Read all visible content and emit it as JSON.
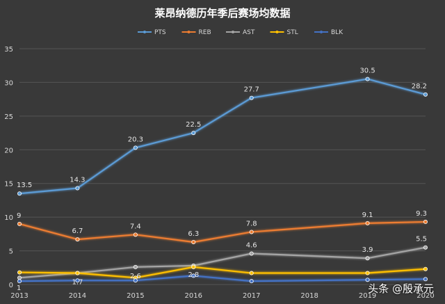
{
  "chart_data": {
    "type": "line",
    "title": "莱昂纳德历年季后赛场均数据",
    "categories": [
      "2013",
      "2014",
      "2015",
      "2016",
      "2017",
      "2018",
      "2019",
      "2020"
    ],
    "ylim": [
      0,
      35
    ],
    "yticks": [
      0,
      5,
      10,
      15,
      20,
      25,
      30,
      35
    ],
    "grid": true,
    "legend_position": "top",
    "series": [
      {
        "name": "PTS",
        "color": "#5b9bd5",
        "values": [
          13.5,
          14.3,
          20.3,
          22.5,
          27.7,
          null,
          30.5,
          28.2
        ],
        "labels": [
          "13.5",
          "14.3",
          "20.3",
          "22.5",
          "27.7",
          null,
          "30.5",
          "28.2"
        ]
      },
      {
        "name": "REB",
        "color": "#ed7d31",
        "values": [
          9,
          6.7,
          7.4,
          6.3,
          7.8,
          null,
          9.1,
          9.3
        ],
        "labels": [
          "9",
          "6.7",
          "7.4",
          "6.3",
          "7.8",
          null,
          "9.1",
          "9.3"
        ]
      },
      {
        "name": "AST",
        "color": "#a5a5a5",
        "values": [
          1.0,
          1.7,
          2.6,
          2.8,
          4.6,
          null,
          3.9,
          5.5
        ],
        "labels": [
          "1",
          "1.7",
          "2.6",
          "2.8",
          "4.6",
          null,
          "3.9",
          "5.5"
        ]
      },
      {
        "name": "STL",
        "color": "#ffc000",
        "values": [
          1.8,
          1.7,
          1.0,
          2.6,
          1.7,
          null,
          1.7,
          2.3
        ],
        "labels": []
      },
      {
        "name": "BLK",
        "color": "#4472c4",
        "values": [
          0.5,
          0.6,
          0.6,
          1.3,
          0.5,
          null,
          0.7,
          0.8
        ],
        "labels": []
      }
    ]
  },
  "watermark": "头条 @殷承元"
}
